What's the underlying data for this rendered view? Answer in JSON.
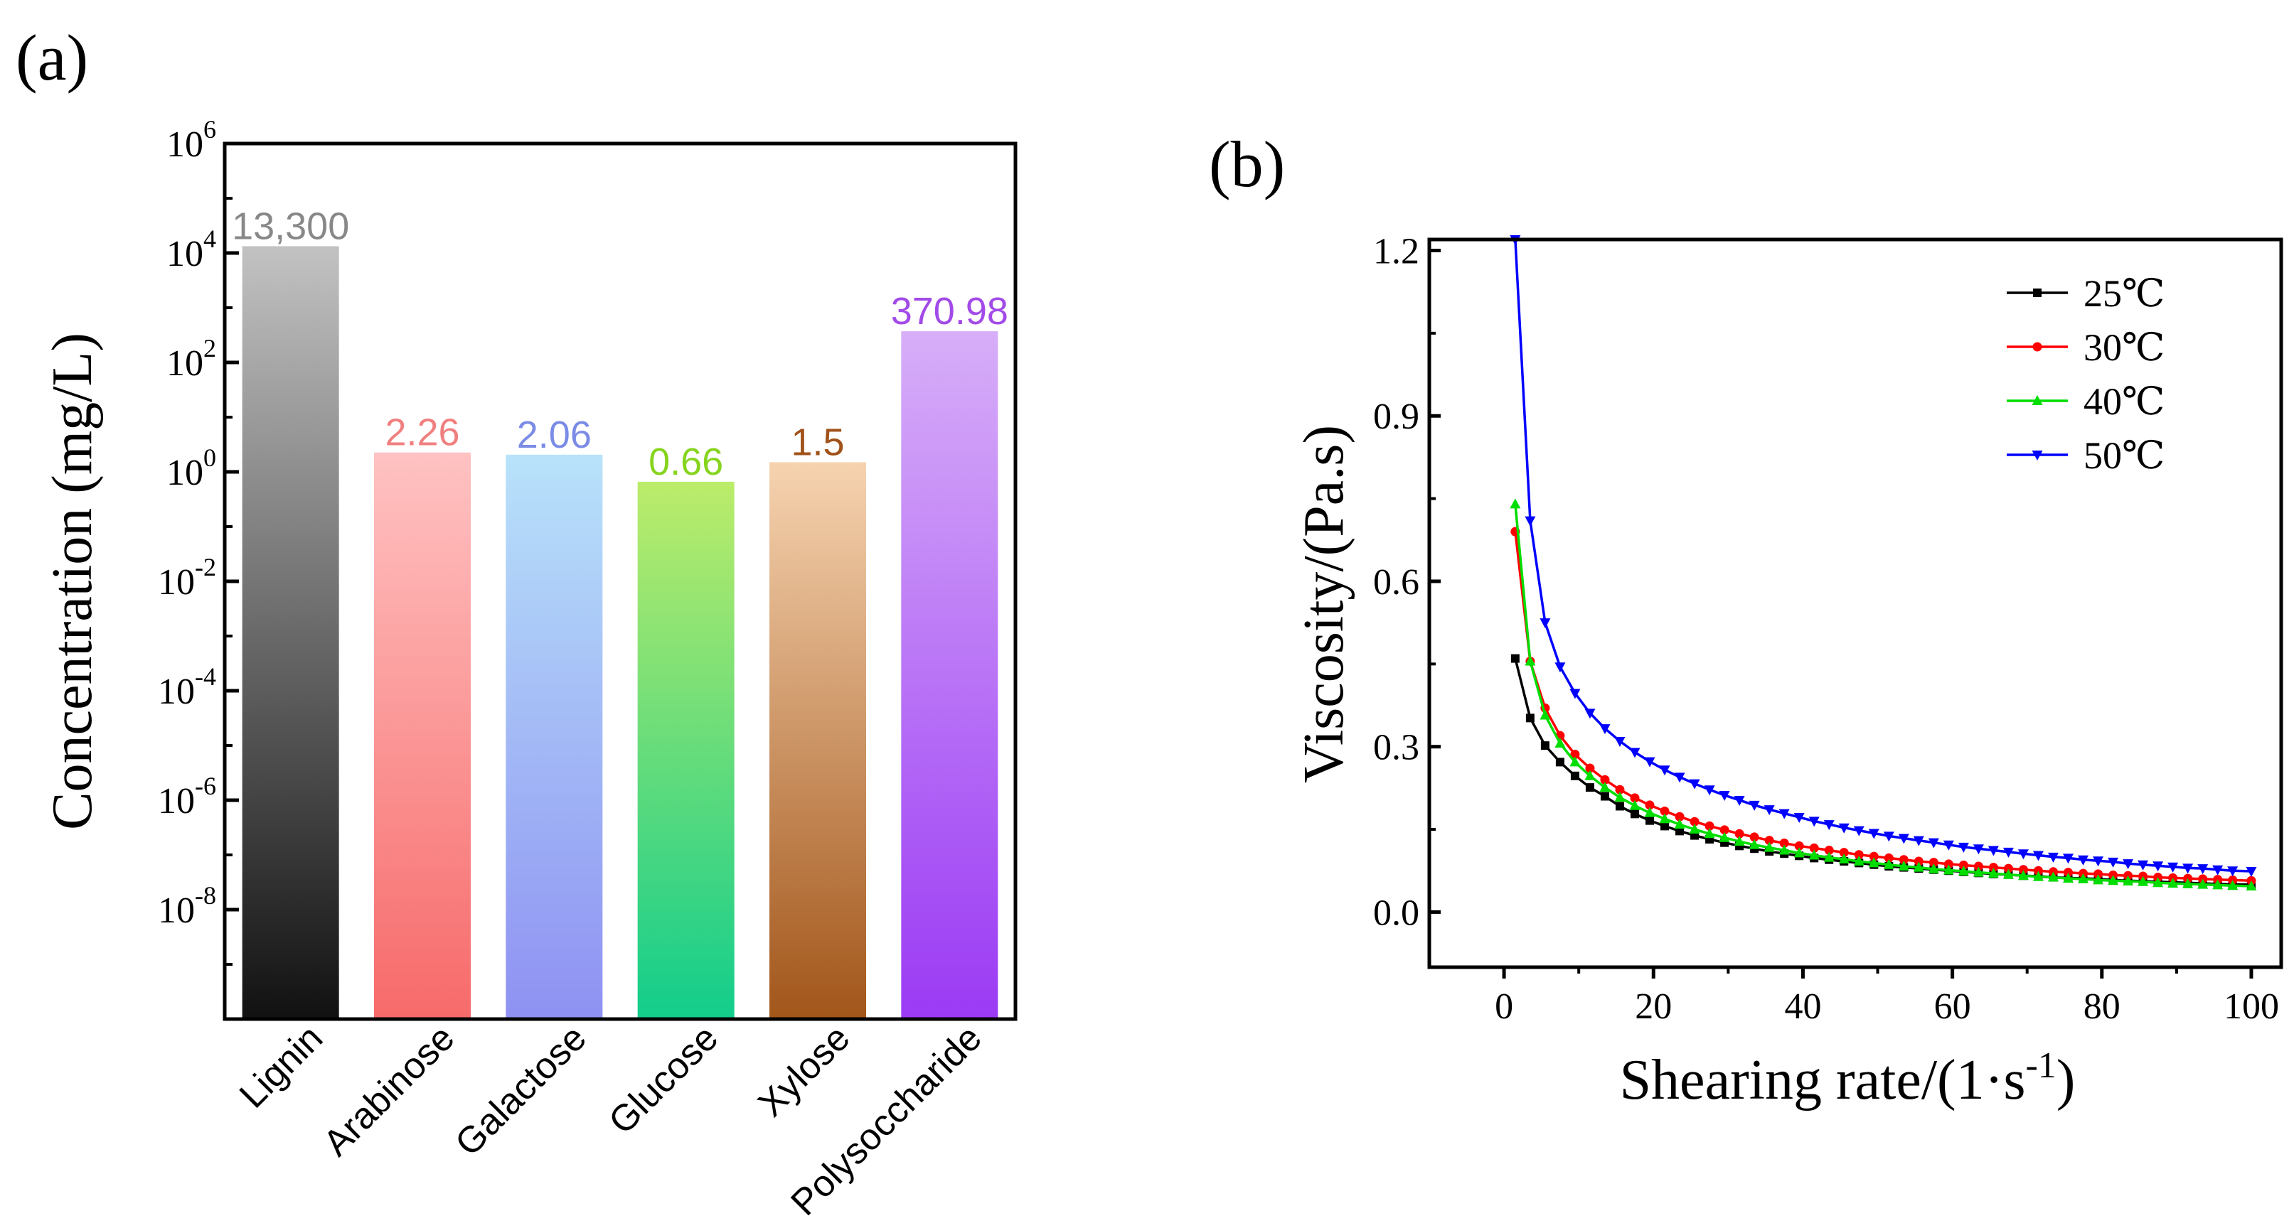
{
  "panels": {
    "a": "(a)",
    "b": "(b)"
  },
  "chart_data": [
    {
      "type": "bar",
      "title": "",
      "ylabel": "Concentration (mg/L)",
      "xlabel": "",
      "yscale": "log",
      "ylim": [
        1e-10,
        1000000.0
      ],
      "ytick_values": [
        1000000.0,
        10000.0,
        100.0,
        1,
        0.01,
        0.0001,
        1e-06,
        1e-08
      ],
      "yticks": [
        {
          "base": "10",
          "exp": "6"
        },
        {
          "base": "10",
          "exp": "4"
        },
        {
          "base": "10",
          "exp": "2"
        },
        {
          "base": "10",
          "exp": "0"
        },
        {
          "base": "10",
          "exp": "-2"
        },
        {
          "base": "10",
          "exp": "-4"
        },
        {
          "base": "10",
          "exp": "-6"
        },
        {
          "base": "10",
          "exp": "-8"
        }
      ],
      "categories": [
        "Lignin",
        "Arabinose",
        "Galactose",
        "Glucose",
        "Xylose",
        "Polysoccharide"
      ],
      "values": [
        13300,
        2.26,
        2.06,
        0.66,
        1.5,
        370.98
      ],
      "labels": [
        "13,300",
        "2.26",
        "2.06",
        "0.66",
        "1.5",
        "370.98"
      ],
      "label_colors": [
        "#888888",
        "#f08080",
        "#7b8ce6",
        "#86d41e",
        "#a0521a",
        "#a24be8"
      ],
      "gradients": [
        [
          "#c2c2c2",
          "#111111"
        ],
        [
          "#ffc2c2",
          "#f76a6a"
        ],
        [
          "#b8e2fa",
          "#8e91f2"
        ],
        [
          "#bcec6a",
          "#12cd8c"
        ],
        [
          "#f6d3b0",
          "#a2561a"
        ],
        [
          "#d7aef8",
          "#9b3af4"
        ]
      ]
    },
    {
      "type": "line",
      "title": "",
      "xlabel": "Shearing rate/(1·s",
      "xlabel_sup": "-1",
      "xlabel_end": ")",
      "ylabel": "Viscosity/(Pa.s)",
      "xlim": [
        -10,
        104
      ],
      "ylim": [
        -0.1,
        1.22
      ],
      "xticks": [
        0,
        20,
        40,
        60,
        80,
        100
      ],
      "yticks": [
        0.0,
        0.3,
        0.6,
        0.9,
        1.2
      ],
      "ytick_labels": [
        "0.0",
        "0.3",
        "0.6",
        "0.9",
        "1.2"
      ],
      "x": [
        1.5,
        3.5,
        5.5,
        7.5,
        9.5,
        11.5,
        13.5,
        15.5,
        17.5,
        19.5,
        21.5,
        23.5,
        25.5,
        27.5,
        29.5,
        31.5,
        33.5,
        35.5,
        37.5,
        39.5,
        41.5,
        43.5,
        45.5,
        47.5,
        49.5,
        51.5,
        53.5,
        55.5,
        57.5,
        59.5,
        61.5,
        63.5,
        65.5,
        67.5,
        69.5,
        71.5,
        73.5,
        75.5,
        77.5,
        79.5,
        81.5,
        83.5,
        85.5,
        87.5,
        89.5,
        91.5,
        93.5,
        95.5,
        97.5,
        100
      ],
      "series": [
        {
          "name": "25℃",
          "color": "#000000",
          "marker": "square",
          "values": [
            0.46,
            0.352,
            0.302,
            0.272,
            0.247,
            0.226,
            0.21,
            0.192,
            0.178,
            0.166,
            0.156,
            0.147,
            0.139,
            0.132,
            0.126,
            0.12,
            0.115,
            0.11,
            0.106,
            0.102,
            0.098,
            0.095,
            0.092,
            0.089,
            0.086,
            0.083,
            0.081,
            0.079,
            0.077,
            0.075,
            0.073,
            0.071,
            0.069,
            0.068,
            0.066,
            0.065,
            0.063,
            0.062,
            0.061,
            0.06,
            0.058,
            0.057,
            0.056,
            0.055,
            0.054,
            0.053,
            0.052,
            0.051,
            0.05,
            0.05
          ]
        },
        {
          "name": "30℃",
          "color": "#ff0000",
          "marker": "circle",
          "values": [
            0.69,
            0.455,
            0.37,
            0.32,
            0.286,
            0.261,
            0.24,
            0.222,
            0.207,
            0.194,
            0.183,
            0.173,
            0.164,
            0.156,
            0.149,
            0.142,
            0.136,
            0.13,
            0.125,
            0.12,
            0.116,
            0.112,
            0.108,
            0.104,
            0.101,
            0.098,
            0.095,
            0.092,
            0.09,
            0.087,
            0.085,
            0.083,
            0.081,
            0.079,
            0.077,
            0.075,
            0.073,
            0.072,
            0.07,
            0.069,
            0.067,
            0.066,
            0.065,
            0.063,
            0.062,
            0.061,
            0.06,
            0.059,
            0.058,
            0.057
          ]
        },
        {
          "name": "40℃",
          "color": "#00dd00",
          "marker": "triangle-up",
          "values": [
            0.74,
            0.455,
            0.357,
            0.306,
            0.272,
            0.247,
            0.226,
            0.208,
            0.193,
            0.18,
            0.169,
            0.159,
            0.15,
            0.142,
            0.135,
            0.128,
            0.122,
            0.117,
            0.112,
            0.107,
            0.103,
            0.099,
            0.096,
            0.092,
            0.089,
            0.086,
            0.083,
            0.081,
            0.078,
            0.076,
            0.074,
            0.072,
            0.07,
            0.068,
            0.066,
            0.064,
            0.063,
            0.061,
            0.06,
            0.058,
            0.057,
            0.056,
            0.055,
            0.053,
            0.052,
            0.051,
            0.05,
            0.049,
            0.048,
            0.047
          ]
        },
        {
          "name": "50℃",
          "color": "#0000ff",
          "marker": "triangle-down",
          "values": [
            1.22,
            0.71,
            0.525,
            0.445,
            0.397,
            0.361,
            0.333,
            0.31,
            0.29,
            0.273,
            0.258,
            0.245,
            0.233,
            0.222,
            0.212,
            0.203,
            0.194,
            0.186,
            0.179,
            0.172,
            0.165,
            0.159,
            0.153,
            0.148,
            0.143,
            0.138,
            0.134,
            0.13,
            0.126,
            0.122,
            0.118,
            0.115,
            0.112,
            0.109,
            0.106,
            0.103,
            0.1,
            0.098,
            0.095,
            0.093,
            0.091,
            0.088,
            0.086,
            0.084,
            0.082,
            0.08,
            0.079,
            0.077,
            0.075,
            0.074
          ]
        }
      ],
      "legend_position": "top-right"
    }
  ]
}
